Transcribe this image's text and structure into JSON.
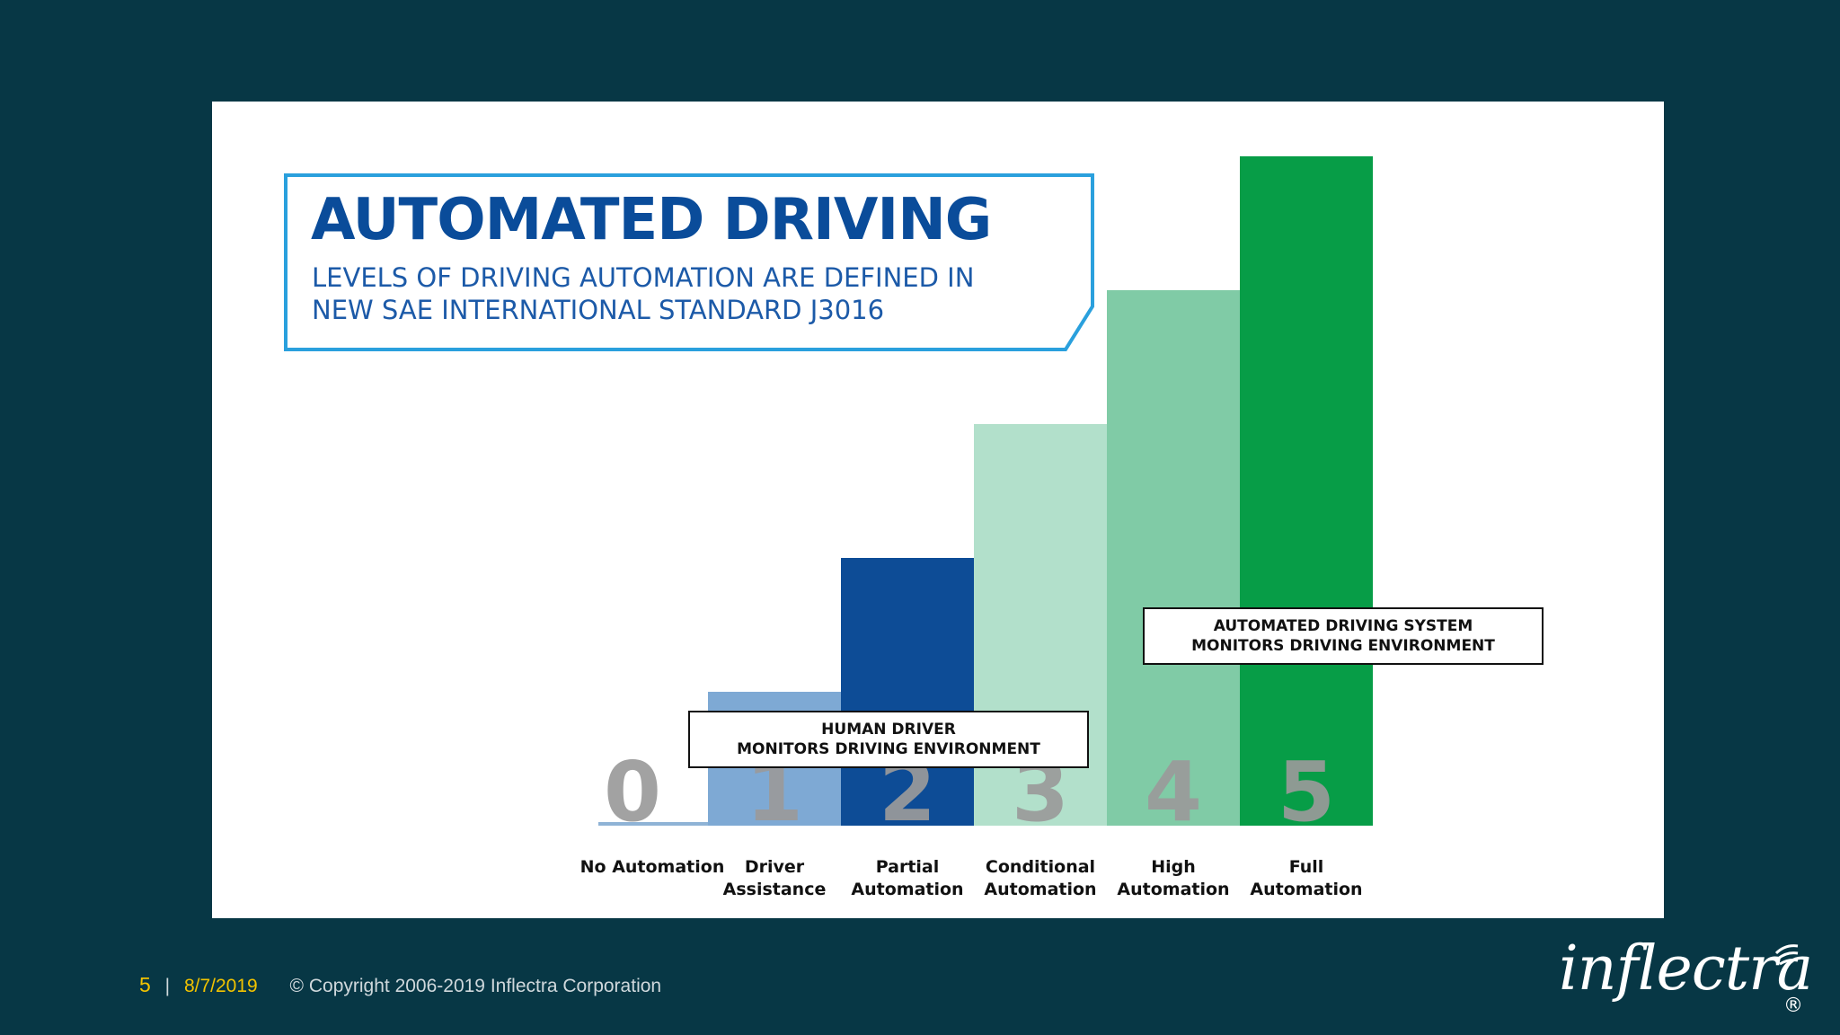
{
  "colors": {
    "background": "#073745",
    "card": "#ffffff",
    "title": "#0a4c9a",
    "title_border": "#2aa0dd",
    "number_gray": "#9a9a9a"
  },
  "chart_data": {
    "type": "bar",
    "title": "AUTOMATED DRIVING",
    "subtitle_lines": [
      "LEVELS OF DRIVING AUTOMATION ARE DEFINED IN",
      "NEW SAE INTERNATIONAL STANDARD J3016"
    ],
    "categories": [
      "0",
      "1",
      "2",
      "3",
      "4",
      "5"
    ],
    "category_labels": [
      [
        "No Automation"
      ],
      [
        "Driver",
        "Assistance"
      ],
      [
        "Partial",
        "Automation"
      ],
      [
        "Conditional",
        "Automation"
      ],
      [
        "High",
        "Automation"
      ],
      [
        "Full",
        "Automation"
      ]
    ],
    "values": [
      0,
      1,
      2,
      3,
      4,
      5
    ],
    "bar_colors": [
      "#8fb3d6",
      "#7ea9d4",
      "#0d4c96",
      "#b2e0cb",
      "#80cba6",
      "#079d47"
    ],
    "ylim": [
      0,
      5
    ],
    "grid": false,
    "xlabel": "",
    "ylabel": "",
    "regions": [
      {
        "levels": [
          0,
          1,
          2
        ],
        "lines": [
          "HUMAN DRIVER",
          "MONITORS DRIVING ENVIRONMENT"
        ]
      },
      {
        "levels": [
          3,
          4,
          5
        ],
        "lines": [
          "AUTOMATED DRIVING SYSTEM",
          "MONITORS DRIVING ENVIRONMENT"
        ]
      }
    ]
  },
  "footer": {
    "page_number": "5",
    "separator": "|",
    "date": "8/7/2019",
    "copyright": "© Copyright 2006-2019 Inflectra Corporation"
  },
  "logo": {
    "text": "inflectra",
    "registered": "®"
  }
}
